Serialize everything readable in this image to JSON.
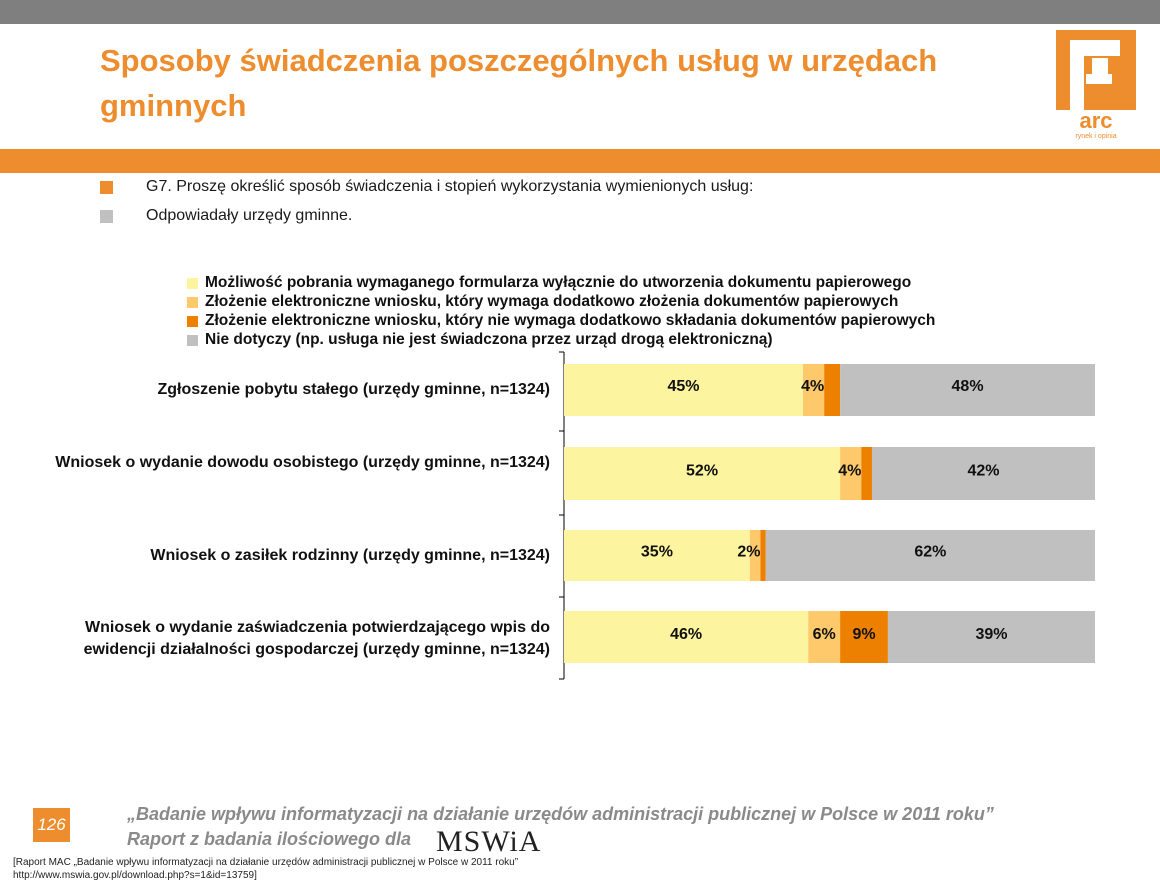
{
  "header": {
    "title": "Sposoby świadczenia poszczególnych usług w urzędach gminnych",
    "logo_text": "arc",
    "logo_subtext": "rynek i opinia"
  },
  "question": {
    "text": "G7. Proszę określić sposób świadczenia i stopień wykorzystania wymienionych usług:",
    "base": "Odpowiadały urzędy gminne."
  },
  "chart_data": {
    "type": "bar",
    "orientation": "horizontal",
    "stacked": true,
    "categories": [
      "Zgłoszenie pobytu stałego (urzędy gminne, n=1324)",
      "Wniosek o wydanie dowodu osobistego (urzędy gminne, n=1324)",
      "Wniosek o zasiłek rodzinny (urzędy gminne, n=1324)",
      "Wniosek o wydanie zaświadczenia potwierdzającego wpis do ewidencji działalności gospodarczej (urzędy gminne, n=1324)"
    ],
    "series": [
      {
        "name": "Możliwość pobrania wymaganego formularza wyłącznie do utworzenia dokumentu papierowego",
        "color": "#fdf4a0",
        "values": [
          45,
          52,
          35,
          46
        ]
      },
      {
        "name": "Złożenie elektroniczne wniosku, który wymaga dodatkowo złożenia dokumentów papierowych",
        "color": "#fdc96a",
        "values": [
          4,
          4,
          2,
          6
        ]
      },
      {
        "name": "Złożenie elektroniczne wniosku, który nie wymaga dodatkowo składania dokumentów papierowych",
        "color": "#ee8000",
        "values": [
          3,
          2,
          1,
          9
        ]
      },
      {
        "name": "Nie dotyczy (np. usługa nie jest świadczona przez urząd drogą elektroniczną)",
        "color": "#c0c0c0",
        "values": [
          48,
          42,
          62,
          39
        ]
      }
    ],
    "value_suffix": "%",
    "xlim": [
      0,
      100
    ],
    "legend_position": "top"
  },
  "footer": {
    "page_number": "126",
    "line1": "„Badanie wpływu informatyzacji na działanie urzędów administracji publicznej w Polsce w 2011 roku”",
    "line2": "Raport z badania ilościowego dla",
    "brand": "MSWiA",
    "source_line1": "[Raport MAC „Badanie wpływu informatyzacji na działanie urzędów administracji publicznej w Polsce w 2011 roku”",
    "source_line2": "http://www.mswia.gov.pl/download.php?s=1&id=13759]"
  },
  "colors": {
    "accent": "#ee8d2e",
    "topbar": "#7f7f7f",
    "square_gray": "#c0c0c0"
  }
}
